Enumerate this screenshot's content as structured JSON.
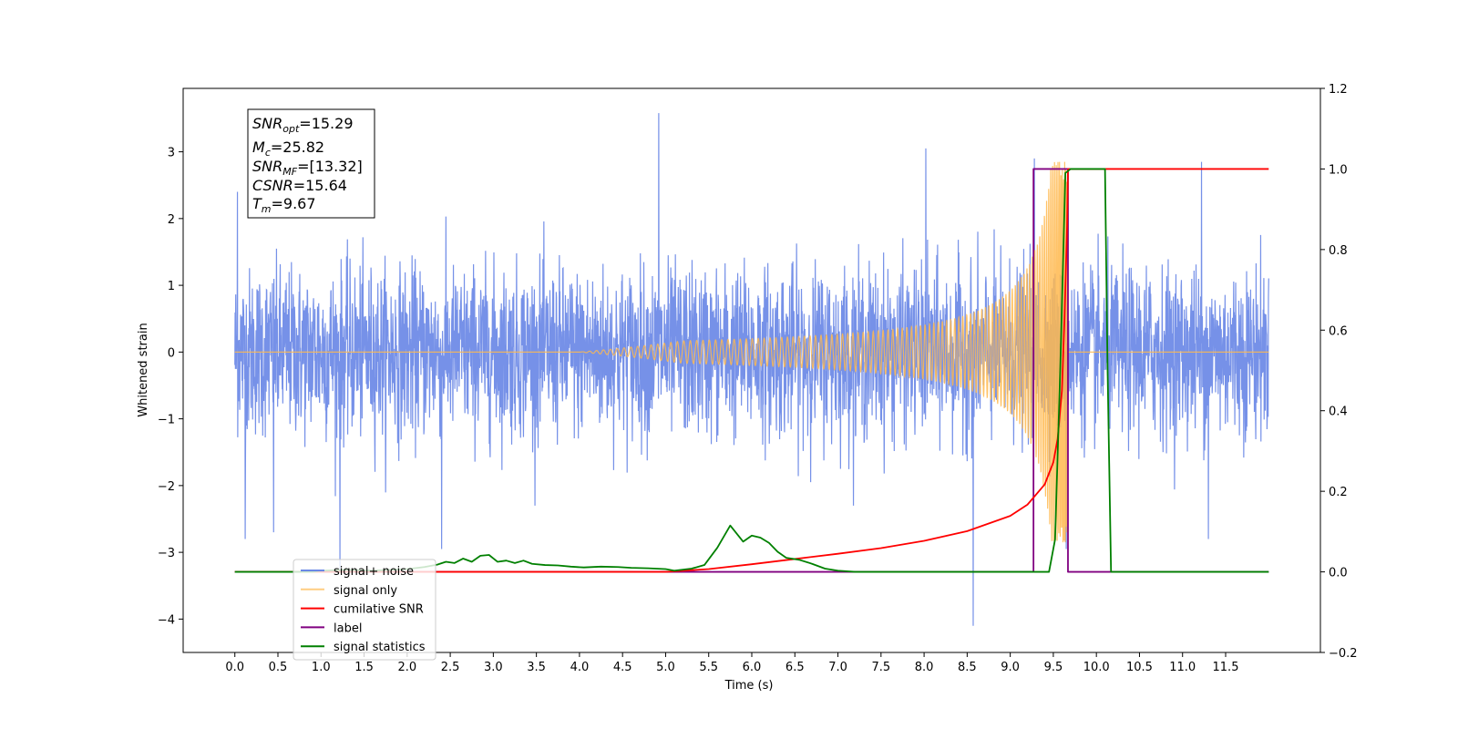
{
  "chart_data": {
    "type": "line",
    "title": "",
    "xlabel": "Time (s)",
    "ylabel": "Whitened strain",
    "y2label": "",
    "xlim": [
      -0.6,
      12.6
    ],
    "ylim": [
      -4.5,
      3.95
    ],
    "y2lim": [
      -0.2,
      1.2
    ],
    "x_ticks": [
      0.0,
      0.5,
      1.0,
      1.5,
      2.0,
      2.5,
      3.0,
      3.5,
      4.0,
      4.5,
      5.0,
      5.5,
      6.0,
      6.5,
      7.0,
      7.5,
      8.0,
      8.5,
      9.0,
      9.5,
      10.0,
      10.5,
      11.0,
      11.5
    ],
    "x_tick_labels": [
      "0.0",
      "0.5",
      "1.0",
      "1.5",
      "2.0",
      "2.5",
      "3.0",
      "3.5",
      "4.0",
      "4.5",
      "5.0",
      "5.5",
      "6.0",
      "6.5",
      "7.0",
      "7.5",
      "8.0",
      "8.5",
      "9.0",
      "9.5",
      "10.0",
      "10.5",
      "11.0",
      "11.5"
    ],
    "y_ticks": [
      -4,
      -3,
      -2,
      -1,
      0,
      1,
      2,
      3
    ],
    "y_tick_labels": [
      "−4",
      "−3",
      "−2",
      "−1",
      "0",
      "1",
      "2",
      "3"
    ],
    "y2_ticks": [
      -0.2,
      0.0,
      0.2,
      0.4,
      0.6,
      0.8,
      1.0,
      1.2
    ],
    "y2_tick_labels": [
      "−0.2",
      "0.0",
      "0.2",
      "0.4",
      "0.6",
      "0.8",
      "1.0",
      "1.2"
    ],
    "grid": false,
    "legend_position": "lower-left",
    "series": [
      {
        "name": "signal+ noise",
        "axis": "left",
        "color": "#6a88e6",
        "style": "dense noise",
        "x_range": [
          0.0,
          12.0
        ],
        "typical_amplitude": 1.5,
        "peaks": [
          {
            "x": 0.03,
            "y": 2.4
          },
          {
            "x": 0.12,
            "y": -2.8
          },
          {
            "x": 1.22,
            "y": -3.3
          },
          {
            "x": 4.92,
            "y": 3.58
          },
          {
            "x": 8.02,
            "y": 3.05
          },
          {
            "x": 8.57,
            "y": -4.1
          },
          {
            "x": 9.28,
            "y": 2.9
          },
          {
            "x": 9.65,
            "y": -2.95
          },
          {
            "x": 11.22,
            "y": 2.85
          },
          {
            "x": 11.3,
            "y": -2.8
          },
          {
            "x": 0.45,
            "y": -2.7
          },
          {
            "x": 2.4,
            "y": -2.95
          }
        ]
      },
      {
        "name": "signal only",
        "axis": "left",
        "color": "#ffb84d",
        "style": "chirp",
        "x_range": [
          0.0,
          12.0
        ],
        "merger_time": 9.67,
        "peak_amplitude": 2.85
      },
      {
        "name": "cumilative SNR",
        "axis": "right",
        "color": "#ff0000",
        "points": [
          [
            0.0,
            0.0
          ],
          [
            0.9,
            0.0
          ],
          [
            1.5,
            0.0
          ],
          [
            2.0,
            0.0
          ],
          [
            3.0,
            0.0
          ],
          [
            4.0,
            0.0
          ],
          [
            5.0,
            0.0
          ],
          [
            5.5,
            0.007
          ],
          [
            6.0,
            0.019
          ],
          [
            6.5,
            0.032
          ],
          [
            7.0,
            0.045
          ],
          [
            7.5,
            0.059
          ],
          [
            8.0,
            0.077
          ],
          [
            8.5,
            0.101
          ],
          [
            9.0,
            0.139
          ],
          [
            9.2,
            0.167
          ],
          [
            9.4,
            0.217
          ],
          [
            9.5,
            0.272
          ],
          [
            9.55,
            0.33
          ],
          [
            9.6,
            0.45
          ],
          [
            9.63,
            0.63
          ],
          [
            9.66,
            0.86
          ],
          [
            9.67,
            1.0
          ],
          [
            12.0,
            1.0
          ]
        ]
      },
      {
        "name": "label",
        "axis": "right",
        "color": "#800080",
        "points": [
          [
            0.0,
            0.0
          ],
          [
            9.27,
            0.0
          ],
          [
            9.27,
            1.0
          ],
          [
            9.67,
            1.0
          ],
          [
            9.67,
            0.0
          ],
          [
            12.0,
            0.0
          ]
        ]
      },
      {
        "name": "signal statistics",
        "axis": "right",
        "color": "#008000",
        "points": [
          [
            0.0,
            0.0
          ],
          [
            0.9,
            0.0
          ],
          [
            1.0,
            0.003
          ],
          [
            1.3,
            0.005
          ],
          [
            1.6,
            0.003
          ],
          [
            2.0,
            0.007
          ],
          [
            2.2,
            0.012
          ],
          [
            2.35,
            0.018
          ],
          [
            2.45,
            0.025
          ],
          [
            2.55,
            0.022
          ],
          [
            2.65,
            0.033
          ],
          [
            2.75,
            0.025
          ],
          [
            2.85,
            0.04
          ],
          [
            2.95,
            0.042
          ],
          [
            3.05,
            0.025
          ],
          [
            3.15,
            0.028
          ],
          [
            3.25,
            0.022
          ],
          [
            3.35,
            0.028
          ],
          [
            3.45,
            0.02
          ],
          [
            3.6,
            0.017
          ],
          [
            3.75,
            0.016
          ],
          [
            3.9,
            0.013
          ],
          [
            4.05,
            0.011
          ],
          [
            4.25,
            0.013
          ],
          [
            4.45,
            0.012
          ],
          [
            4.6,
            0.01
          ],
          [
            4.8,
            0.009
          ],
          [
            5.0,
            0.007
          ],
          [
            5.1,
            0.003
          ],
          [
            5.3,
            0.008
          ],
          [
            5.45,
            0.017
          ],
          [
            5.6,
            0.06
          ],
          [
            5.75,
            0.115
          ],
          [
            5.9,
            0.075
          ],
          [
            6.0,
            0.09
          ],
          [
            6.1,
            0.085
          ],
          [
            6.2,
            0.072
          ],
          [
            6.3,
            0.05
          ],
          [
            6.4,
            0.035
          ],
          [
            6.55,
            0.03
          ],
          [
            6.7,
            0.02
          ],
          [
            6.85,
            0.008
          ],
          [
            7.0,
            0.003
          ],
          [
            7.2,
            0.0
          ],
          [
            9.45,
            0.0
          ],
          [
            9.52,
            0.08
          ],
          [
            9.58,
            0.5
          ],
          [
            9.64,
            0.99
          ],
          [
            9.7,
            1.0
          ],
          [
            10.1,
            1.0
          ],
          [
            10.13,
            0.5
          ],
          [
            10.17,
            0.0
          ],
          [
            12.0,
            0.0
          ]
        ]
      }
    ]
  },
  "info_box": {
    "snr_opt": {
      "base": "SNR",
      "sub": "opt",
      "value": "=15.29"
    },
    "mc": {
      "base": "M",
      "sub": "c",
      "value": "=25.82"
    },
    "snr_mf": {
      "base": "SNR",
      "sub": "MF",
      "value": "=[13.32]"
    },
    "csnr": {
      "base": "CSNR",
      "sub": "",
      "value": "=15.64"
    },
    "tm": {
      "base": "T",
      "sub": "m",
      "value": "=9.67"
    }
  },
  "legend": {
    "items": [
      "signal+ noise",
      "signal only",
      "cumilative SNR",
      "label",
      "signal statistics"
    ],
    "colors": [
      "#6a88e6",
      "#ffb84d",
      "#ff0000",
      "#800080",
      "#008000"
    ]
  }
}
